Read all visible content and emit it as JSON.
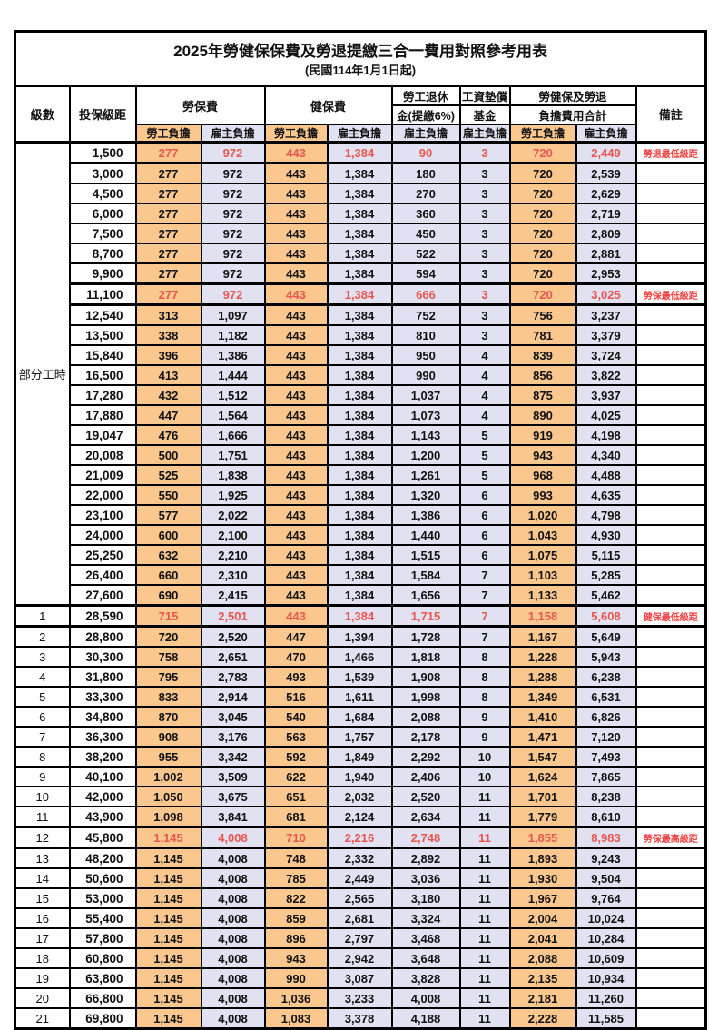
{
  "title": "2025年勞健保保費及勞退提繳三合一費用對照參考用表",
  "subtitle": "(民國114年1月1日起)",
  "header": {
    "level": "級數",
    "bracket": "投保級距",
    "labor_ins": "勞保費",
    "health_ins": "健保費",
    "pension_line1": "勞工退休",
    "pension_line2": "金(提繳6%)",
    "wage_fund_line1": "工資墊償",
    "wage_fund_line2": "基金",
    "total_line1": "勞健保及勞退",
    "total_line2": "負擔費用合計",
    "remark": "備註",
    "employee_label": "勞工負擔",
    "employer_label": "雇主負擔"
  },
  "part_time_label": "部分工時",
  "colors": {
    "employee_bg": "#FAC78F",
    "employer_bg": "#E2E1F1",
    "highlight_text": "#E8564F",
    "remark_text": "#F23F3F",
    "border": "#000000"
  },
  "rows": [
    {
      "level": "",
      "bracket": "1,500",
      "labor_emp": "277",
      "labor_er": "972",
      "health_emp": "443",
      "health_er": "1,384",
      "pension": "90",
      "wage": "3",
      "total_emp": "720",
      "total_er": "2,449",
      "note": "勞退最低級距",
      "red": true
    },
    {
      "level": "",
      "bracket": "3,000",
      "labor_emp": "277",
      "labor_er": "972",
      "health_emp": "443",
      "health_er": "1,384",
      "pension": "180",
      "wage": "3",
      "total_emp": "720",
      "total_er": "2,539",
      "note": "",
      "red": false
    },
    {
      "level": "",
      "bracket": "4,500",
      "labor_emp": "277",
      "labor_er": "972",
      "health_emp": "443",
      "health_er": "1,384",
      "pension": "270",
      "wage": "3",
      "total_emp": "720",
      "total_er": "2,629",
      "note": "",
      "red": false
    },
    {
      "level": "",
      "bracket": "6,000",
      "labor_emp": "277",
      "labor_er": "972",
      "health_emp": "443",
      "health_er": "1,384",
      "pension": "360",
      "wage": "3",
      "total_emp": "720",
      "total_er": "2,719",
      "note": "",
      "red": false
    },
    {
      "level": "",
      "bracket": "7,500",
      "labor_emp": "277",
      "labor_er": "972",
      "health_emp": "443",
      "health_er": "1,384",
      "pension": "450",
      "wage": "3",
      "total_emp": "720",
      "total_er": "2,809",
      "note": "",
      "red": false
    },
    {
      "level": "",
      "bracket": "8,700",
      "labor_emp": "277",
      "labor_er": "972",
      "health_emp": "443",
      "health_er": "1,384",
      "pension": "522",
      "wage": "3",
      "total_emp": "720",
      "total_er": "2,881",
      "note": "",
      "red": false
    },
    {
      "level": "",
      "bracket": "9,900",
      "labor_emp": "277",
      "labor_er": "972",
      "health_emp": "443",
      "health_er": "1,384",
      "pension": "594",
      "wage": "3",
      "total_emp": "720",
      "total_er": "2,953",
      "note": "",
      "red": false
    },
    {
      "level": "",
      "bracket": "11,100",
      "labor_emp": "277",
      "labor_er": "972",
      "health_emp": "443",
      "health_er": "1,384",
      "pension": "666",
      "wage": "3",
      "total_emp": "720",
      "total_er": "3,025",
      "note": "勞保最低級距",
      "red": true
    },
    {
      "level": "",
      "bracket": "12,540",
      "labor_emp": "313",
      "labor_er": "1,097",
      "health_emp": "443",
      "health_er": "1,384",
      "pension": "752",
      "wage": "3",
      "total_emp": "756",
      "total_er": "3,237",
      "note": "",
      "red": false
    },
    {
      "level": "",
      "bracket": "13,500",
      "labor_emp": "338",
      "labor_er": "1,182",
      "health_emp": "443",
      "health_er": "1,384",
      "pension": "810",
      "wage": "3",
      "total_emp": "781",
      "total_er": "3,379",
      "note": "",
      "red": false
    },
    {
      "level": "",
      "bracket": "15,840",
      "labor_emp": "396",
      "labor_er": "1,386",
      "health_emp": "443",
      "health_er": "1,384",
      "pension": "950",
      "wage": "4",
      "total_emp": "839",
      "total_er": "3,724",
      "note": "",
      "red": false
    },
    {
      "level": "",
      "bracket": "16,500",
      "labor_emp": "413",
      "labor_er": "1,444",
      "health_emp": "443",
      "health_er": "1,384",
      "pension": "990",
      "wage": "4",
      "total_emp": "856",
      "total_er": "3,822",
      "note": "",
      "red": false
    },
    {
      "level": "",
      "bracket": "17,280",
      "labor_emp": "432",
      "labor_er": "1,512",
      "health_emp": "443",
      "health_er": "1,384",
      "pension": "1,037",
      "wage": "4",
      "total_emp": "875",
      "total_er": "3,937",
      "note": "",
      "red": false
    },
    {
      "level": "",
      "bracket": "17,880",
      "labor_emp": "447",
      "labor_er": "1,564",
      "health_emp": "443",
      "health_er": "1,384",
      "pension": "1,073",
      "wage": "4",
      "total_emp": "890",
      "total_er": "4,025",
      "note": "",
      "red": false
    },
    {
      "level": "",
      "bracket": "19,047",
      "labor_emp": "476",
      "labor_er": "1,666",
      "health_emp": "443",
      "health_er": "1,384",
      "pension": "1,143",
      "wage": "5",
      "total_emp": "919",
      "total_er": "4,198",
      "note": "",
      "red": false
    },
    {
      "level": "",
      "bracket": "20,008",
      "labor_emp": "500",
      "labor_er": "1,751",
      "health_emp": "443",
      "health_er": "1,384",
      "pension": "1,200",
      "wage": "5",
      "total_emp": "943",
      "total_er": "4,340",
      "note": "",
      "red": false
    },
    {
      "level": "",
      "bracket": "21,009",
      "labor_emp": "525",
      "labor_er": "1,838",
      "health_emp": "443",
      "health_er": "1,384",
      "pension": "1,261",
      "wage": "5",
      "total_emp": "968",
      "total_er": "4,488",
      "note": "",
      "red": false
    },
    {
      "level": "",
      "bracket": "22,000",
      "labor_emp": "550",
      "labor_er": "1,925",
      "health_emp": "443",
      "health_er": "1,384",
      "pension": "1,320",
      "wage": "6",
      "total_emp": "993",
      "total_er": "4,635",
      "note": "",
      "red": false
    },
    {
      "level": "",
      "bracket": "23,100",
      "labor_emp": "577",
      "labor_er": "2,022",
      "health_emp": "443",
      "health_er": "1,384",
      "pension": "1,386",
      "wage": "6",
      "total_emp": "1,020",
      "total_er": "4,798",
      "note": "",
      "red": false
    },
    {
      "level": "",
      "bracket": "24,000",
      "labor_emp": "600",
      "labor_er": "2,100",
      "health_emp": "443",
      "health_er": "1,384",
      "pension": "1,440",
      "wage": "6",
      "total_emp": "1,043",
      "total_er": "4,930",
      "note": "",
      "red": false
    },
    {
      "level": "",
      "bracket": "25,250",
      "labor_emp": "632",
      "labor_er": "2,210",
      "health_emp": "443",
      "health_er": "1,384",
      "pension": "1,515",
      "wage": "6",
      "total_emp": "1,075",
      "total_er": "5,115",
      "note": "",
      "red": false
    },
    {
      "level": "",
      "bracket": "26,400",
      "labor_emp": "660",
      "labor_er": "2,310",
      "health_emp": "443",
      "health_er": "1,384",
      "pension": "1,584",
      "wage": "7",
      "total_emp": "1,103",
      "total_er": "5,285",
      "note": "",
      "red": false
    },
    {
      "level": "",
      "bracket": "27,600",
      "labor_emp": "690",
      "labor_er": "2,415",
      "health_emp": "443",
      "health_er": "1,384",
      "pension": "1,656",
      "wage": "7",
      "total_emp": "1,133",
      "total_er": "5,462",
      "note": "",
      "red": false
    },
    {
      "level": "1",
      "bracket": "28,590",
      "labor_emp": "715",
      "labor_er": "2,501",
      "health_emp": "443",
      "health_er": "1,384",
      "pension": "1,715",
      "wage": "7",
      "total_emp": "1,158",
      "total_er": "5,608",
      "note": "健保最低級距",
      "red": true
    },
    {
      "level": "2",
      "bracket": "28,800",
      "labor_emp": "720",
      "labor_er": "2,520",
      "health_emp": "447",
      "health_er": "1,394",
      "pension": "1,728",
      "wage": "7",
      "total_emp": "1,167",
      "total_er": "5,649",
      "note": "",
      "red": false
    },
    {
      "level": "3",
      "bracket": "30,300",
      "labor_emp": "758",
      "labor_er": "2,651",
      "health_emp": "470",
      "health_er": "1,466",
      "pension": "1,818",
      "wage": "8",
      "total_emp": "1,228",
      "total_er": "5,943",
      "note": "",
      "red": false
    },
    {
      "level": "4",
      "bracket": "31,800",
      "labor_emp": "795",
      "labor_er": "2,783",
      "health_emp": "493",
      "health_er": "1,539",
      "pension": "1,908",
      "wage": "8",
      "total_emp": "1,288",
      "total_er": "6,238",
      "note": "",
      "red": false
    },
    {
      "level": "5",
      "bracket": "33,300",
      "labor_emp": "833",
      "labor_er": "2,914",
      "health_emp": "516",
      "health_er": "1,611",
      "pension": "1,998",
      "wage": "8",
      "total_emp": "1,349",
      "total_er": "6,531",
      "note": "",
      "red": false
    },
    {
      "level": "6",
      "bracket": "34,800",
      "labor_emp": "870",
      "labor_er": "3,045",
      "health_emp": "540",
      "health_er": "1,684",
      "pension": "2,088",
      "wage": "9",
      "total_emp": "1,410",
      "total_er": "6,826",
      "note": "",
      "red": false
    },
    {
      "level": "7",
      "bracket": "36,300",
      "labor_emp": "908",
      "labor_er": "3,176",
      "health_emp": "563",
      "health_er": "1,757",
      "pension": "2,178",
      "wage": "9",
      "total_emp": "1,471",
      "total_er": "7,120",
      "note": "",
      "red": false
    },
    {
      "level": "8",
      "bracket": "38,200",
      "labor_emp": "955",
      "labor_er": "3,342",
      "health_emp": "592",
      "health_er": "1,849",
      "pension": "2,292",
      "wage": "10",
      "total_emp": "1,547",
      "total_er": "7,493",
      "note": "",
      "red": false
    },
    {
      "level": "9",
      "bracket": "40,100",
      "labor_emp": "1,002",
      "labor_er": "3,509",
      "health_emp": "622",
      "health_er": "1,940",
      "pension": "2,406",
      "wage": "10",
      "total_emp": "1,624",
      "total_er": "7,865",
      "note": "",
      "red": false
    },
    {
      "level": "10",
      "bracket": "42,000",
      "labor_emp": "1,050",
      "labor_er": "3,675",
      "health_emp": "651",
      "health_er": "2,032",
      "pension": "2,520",
      "wage": "11",
      "total_emp": "1,701",
      "total_er": "8,238",
      "note": "",
      "red": false
    },
    {
      "level": "11",
      "bracket": "43,900",
      "labor_emp": "1,098",
      "labor_er": "3,841",
      "health_emp": "681",
      "health_er": "2,124",
      "pension": "2,634",
      "wage": "11",
      "total_emp": "1,779",
      "total_er": "8,610",
      "note": "",
      "red": false
    },
    {
      "level": "12",
      "bracket": "45,800",
      "labor_emp": "1,145",
      "labor_er": "4,008",
      "health_emp": "710",
      "health_er": "2,216",
      "pension": "2,748",
      "wage": "11",
      "total_emp": "1,855",
      "total_er": "8,983",
      "note": "勞保最高級距",
      "red": true
    },
    {
      "level": "13",
      "bracket": "48,200",
      "labor_emp": "1,145",
      "labor_er": "4,008",
      "health_emp": "748",
      "health_er": "2,332",
      "pension": "2,892",
      "wage": "11",
      "total_emp": "1,893",
      "total_er": "9,243",
      "note": "",
      "red": false
    },
    {
      "level": "14",
      "bracket": "50,600",
      "labor_emp": "1,145",
      "labor_er": "4,008",
      "health_emp": "785",
      "health_er": "2,449",
      "pension": "3,036",
      "wage": "11",
      "total_emp": "1,930",
      "total_er": "9,504",
      "note": "",
      "red": false
    },
    {
      "level": "15",
      "bracket": "53,000",
      "labor_emp": "1,145",
      "labor_er": "4,008",
      "health_emp": "822",
      "health_er": "2,565",
      "pension": "3,180",
      "wage": "11",
      "total_emp": "1,967",
      "total_er": "9,764",
      "note": "",
      "red": false
    },
    {
      "level": "16",
      "bracket": "55,400",
      "labor_emp": "1,145",
      "labor_er": "4,008",
      "health_emp": "859",
      "health_er": "2,681",
      "pension": "3,324",
      "wage": "11",
      "total_emp": "2,004",
      "total_er": "10,024",
      "note": "",
      "red": false
    },
    {
      "level": "17",
      "bracket": "57,800",
      "labor_emp": "1,145",
      "labor_er": "4,008",
      "health_emp": "896",
      "health_er": "2,797",
      "pension": "3,468",
      "wage": "11",
      "total_emp": "2,041",
      "total_er": "10,284",
      "note": "",
      "red": false
    },
    {
      "level": "18",
      "bracket": "60,800",
      "labor_emp": "1,145",
      "labor_er": "4,008",
      "health_emp": "943",
      "health_er": "2,942",
      "pension": "3,648",
      "wage": "11",
      "total_emp": "2,088",
      "total_er": "10,609",
      "note": "",
      "red": false
    },
    {
      "level": "19",
      "bracket": "63,800",
      "labor_emp": "1,145",
      "labor_er": "4,008",
      "health_emp": "990",
      "health_er": "3,087",
      "pension": "3,828",
      "wage": "11",
      "total_emp": "2,135",
      "total_er": "10,934",
      "note": "",
      "red": false
    },
    {
      "level": "20",
      "bracket": "66,800",
      "labor_emp": "1,145",
      "labor_er": "4,008",
      "health_emp": "1,036",
      "health_er": "3,233",
      "pension": "4,008",
      "wage": "11",
      "total_emp": "2,181",
      "total_er": "11,260",
      "note": "",
      "red": false
    },
    {
      "level": "21",
      "bracket": "69,800",
      "labor_emp": "1,145",
      "labor_er": "4,008",
      "health_emp": "1,083",
      "health_er": "3,378",
      "pension": "4,188",
      "wage": "11",
      "total_emp": "2,228",
      "total_er": "11,585",
      "note": "",
      "red": false
    }
  ]
}
